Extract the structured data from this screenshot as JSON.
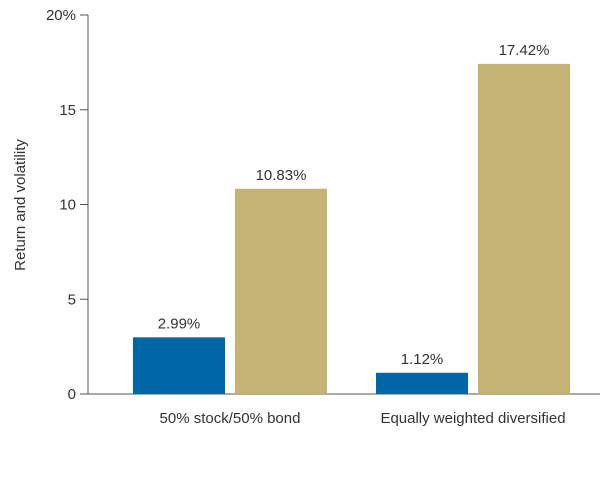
{
  "chart_data": {
    "type": "bar",
    "categories": [
      "50% stock/50% bond",
      "Equally weighted diversified"
    ],
    "series": [
      {
        "values": [
          2.99,
          1.12
        ],
        "color": "#0067a6"
      },
      {
        "values": [
          10.83,
          17.42
        ],
        "color": "#c4b374"
      }
    ],
    "data_labels": [
      [
        "2.99%",
        "1.12%"
      ],
      [
        "10.83%",
        "17.42%"
      ]
    ],
    "ylabel": "Return and volatility",
    "ylim": [
      0,
      20
    ],
    "yticks": [
      0,
      5,
      10,
      15,
      20
    ],
    "ytick_labels": [
      "0",
      "5",
      "10",
      "15",
      "20%"
    ],
    "grid": false,
    "legend": "none"
  }
}
